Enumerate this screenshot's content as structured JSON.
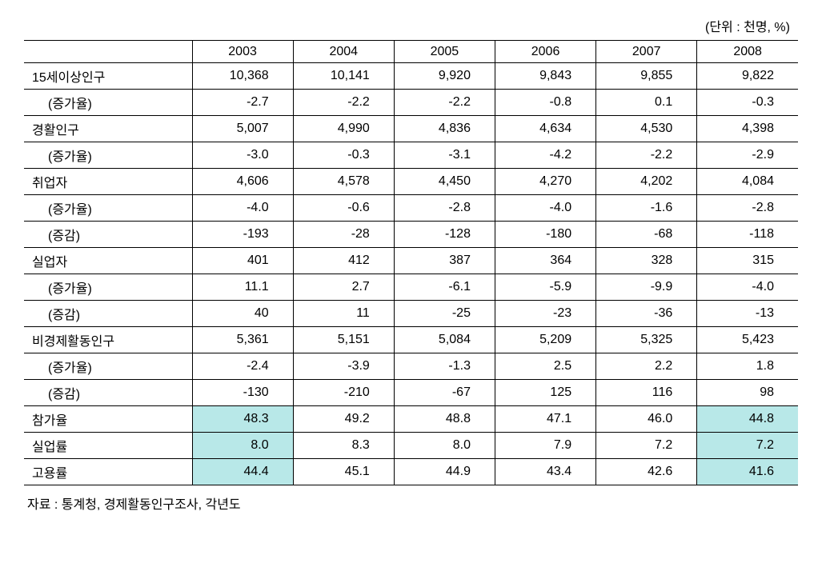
{
  "unit_label": "(단위 : 천명, %)",
  "source": "자료 : 통계청, 경제활동인구조사, 각년도",
  "table": {
    "type": "table",
    "background_color": "#ffffff",
    "border_color": "#000000",
    "highlight_color": "#b8e8e8",
    "font_size": 16,
    "row_label_width": 210,
    "columns": [
      "2003",
      "2004",
      "2005",
      "2006",
      "2007",
      "2008"
    ],
    "rows": [
      {
        "label": "15세이상인구",
        "indent": false,
        "cells": [
          "10,368",
          "10,141",
          "9,920",
          "9,843",
          "9,855",
          "9,822"
        ],
        "hl": []
      },
      {
        "label": "(증가율)",
        "indent": true,
        "cells": [
          "-2.7",
          "-2.2",
          "-2.2",
          "-0.8",
          "0.1",
          "-0.3"
        ],
        "hl": []
      },
      {
        "label": "경활인구",
        "indent": false,
        "cells": [
          "5,007",
          "4,990",
          "4,836",
          "4,634",
          "4,530",
          "4,398"
        ],
        "hl": []
      },
      {
        "label": "(증가율)",
        "indent": true,
        "cells": [
          "-3.0",
          "-0.3",
          "-3.1",
          "-4.2",
          "-2.2",
          "-2.9"
        ],
        "hl": []
      },
      {
        "label": "취업자",
        "indent": false,
        "cells": [
          "4,606",
          "4,578",
          "4,450",
          "4,270",
          "4,202",
          "4,084"
        ],
        "hl": []
      },
      {
        "label": "(증가율)",
        "indent": true,
        "cells": [
          "-4.0",
          "-0.6",
          "-2.8",
          "-4.0",
          "-1.6",
          "-2.8"
        ],
        "hl": []
      },
      {
        "label": "(증감)",
        "indent": true,
        "cells": [
          "-193",
          "-28",
          "-128",
          "-180",
          "-68",
          "-118"
        ],
        "hl": []
      },
      {
        "label": "실업자",
        "indent": false,
        "cells": [
          "401",
          "412",
          "387",
          "364",
          "328",
          "315"
        ],
        "hl": []
      },
      {
        "label": "(증가율)",
        "indent": true,
        "cells": [
          "11.1",
          "2.7",
          "-6.1",
          "-5.9",
          "-9.9",
          "-4.0"
        ],
        "hl": []
      },
      {
        "label": "(증감)",
        "indent": true,
        "cells": [
          "40",
          "11",
          "-25",
          "-23",
          "-36",
          "-13"
        ],
        "hl": []
      },
      {
        "label": "비경제활동인구",
        "indent": false,
        "cells": [
          "5,361",
          "5,151",
          "5,084",
          "5,209",
          "5,325",
          "5,423"
        ],
        "hl": []
      },
      {
        "label": "(증가율)",
        "indent": true,
        "cells": [
          "-2.4",
          "-3.9",
          "-1.3",
          "2.5",
          "2.2",
          "1.8"
        ],
        "hl": []
      },
      {
        "label": "(증감)",
        "indent": true,
        "cells": [
          "-130",
          "-210",
          "-67",
          "125",
          "116",
          "98"
        ],
        "hl": []
      },
      {
        "label": "참가율",
        "indent": false,
        "cells": [
          "48.3",
          "49.2",
          "48.8",
          "47.1",
          "46.0",
          "44.8"
        ],
        "hl": [
          0,
          5
        ]
      },
      {
        "label": "실업률",
        "indent": false,
        "cells": [
          "8.0",
          "8.3",
          "8.0",
          "7.9",
          "7.2",
          "7.2"
        ],
        "hl": [
          0,
          5
        ]
      },
      {
        "label": "고용률",
        "indent": false,
        "cells": [
          "44.4",
          "45.1",
          "44.9",
          "43.4",
          "42.6",
          "41.6"
        ],
        "hl": [
          0,
          5
        ]
      }
    ]
  }
}
